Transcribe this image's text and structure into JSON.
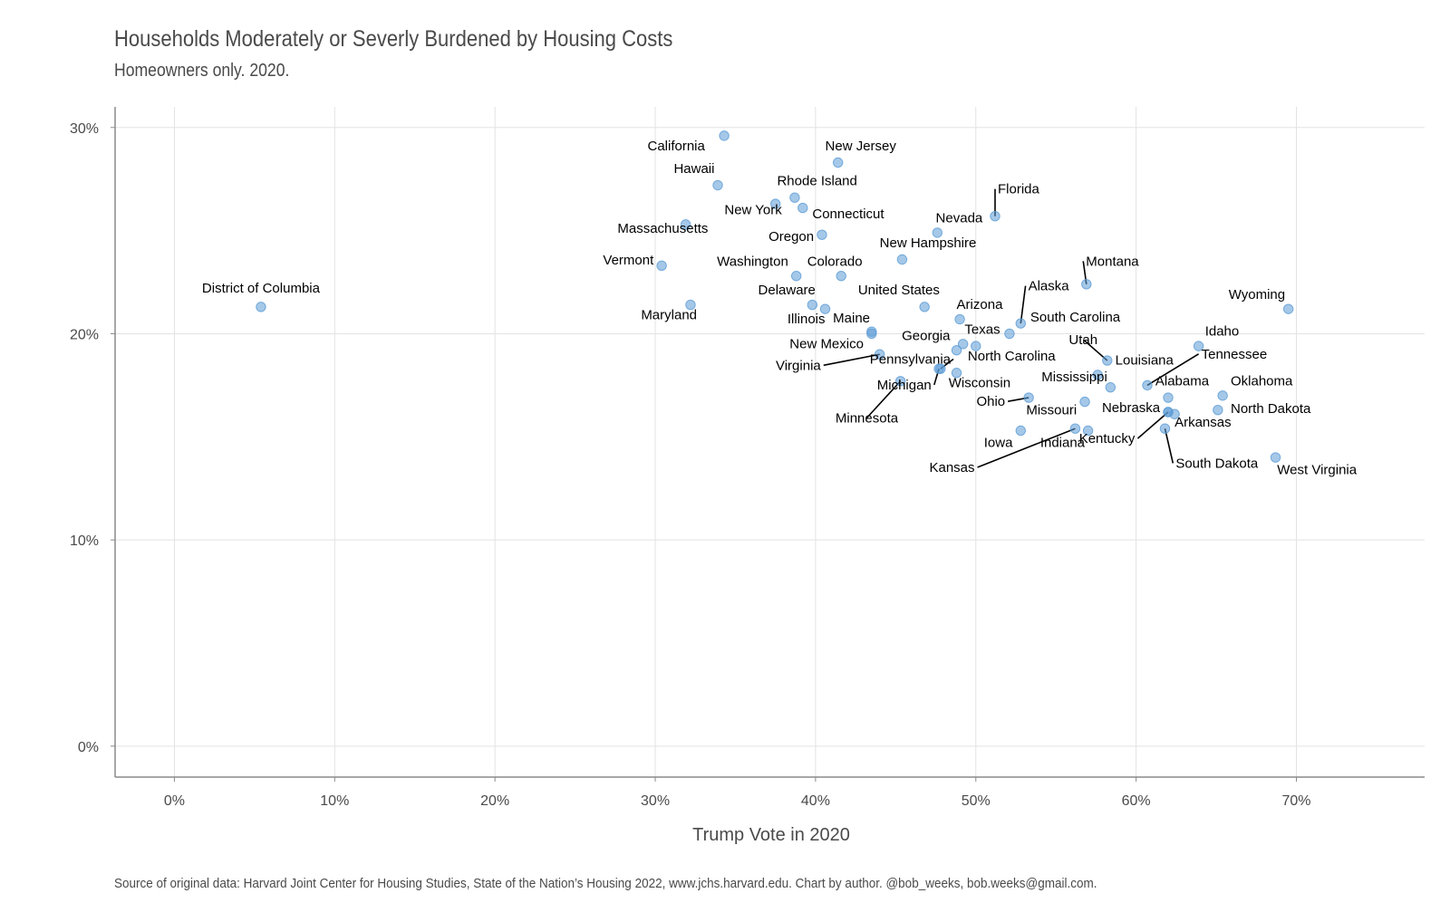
{
  "chart_data": {
    "type": "scatter",
    "title": "Households Moderately or Severly Burdened by Housing Costs",
    "subtitle": "Homeowners only. 2020.",
    "xlabel": "Trump Vote in 2020",
    "ylabel": "",
    "caption": "Source of original data: Harvard Joint Center for Housing Studies, State of the Nation’s Housing 2022, www.jchs.harvard.edu. Chart by author. @bob_weeks, bob.weeks@gmail.com.",
    "xlim": [
      -3.7,
      78
    ],
    "ylim": [
      -1.5,
      31
    ],
    "x_ticks": [
      0,
      10,
      20,
      30,
      40,
      50,
      60,
      70
    ],
    "x_tick_labels": [
      "0%",
      "10%",
      "20%",
      "30%",
      "40%",
      "50%",
      "60%",
      "70%"
    ],
    "y_ticks": [
      0,
      10,
      20,
      30
    ],
    "y_tick_labels": [
      "0%",
      "10%",
      "20%",
      "30%"
    ],
    "grid": true,
    "point_color": "#5b9bd5",
    "points": [
      {
        "label": "District of Columbia",
        "x": 5.4,
        "y": 21.3,
        "anchor": "middle",
        "dx": 0,
        "dy": 0.7,
        "leader": false
      },
      {
        "label": "California",
        "x": 34.3,
        "y": 29.6,
        "anchor": "end",
        "dx": -1.2,
        "dy": -0.7,
        "leader": false
      },
      {
        "label": "Hawaii",
        "x": 33.9,
        "y": 27.2,
        "anchor": "end",
        "dx": -0.2,
        "dy": 0.6,
        "leader": false
      },
      {
        "label": "Massachusetts",
        "x": 31.9,
        "y": 25.3,
        "anchor": "end",
        "dx": 1.4,
        "dy": -0.4,
        "leader": false
      },
      {
        "label": "Vermont",
        "x": 30.4,
        "y": 23.3,
        "anchor": "end",
        "dx": -0.5,
        "dy": 0.05,
        "leader": false
      },
      {
        "label": "Maryland",
        "x": 32.2,
        "y": 21.4,
        "anchor": "end",
        "dx": 0.4,
        "dy": -0.7,
        "leader": false
      },
      {
        "label": "New Jersey",
        "x": 41.4,
        "y": 28.3,
        "anchor": "start",
        "dx": -0.8,
        "dy": 0.6,
        "leader": false
      },
      {
        "label": "Rhode Island",
        "x": 38.7,
        "y": 26.6,
        "anchor": "start",
        "dx": -1.1,
        "dy": 0.6,
        "leader": false
      },
      {
        "label": "New York",
        "x": 37.5,
        "y": 26.3,
        "anchor": "end",
        "dx": 0.4,
        "dy": -0.5,
        "leader": false
      },
      {
        "label": "Connecticut",
        "x": 39.2,
        "y": 26.1,
        "anchor": "start",
        "dx": 0.6,
        "dy": -0.5,
        "leader": false
      },
      {
        "label": "Oregon",
        "x": 40.4,
        "y": 24.8,
        "anchor": "end",
        "dx": -0.5,
        "dy": -0.3,
        "leader": false
      },
      {
        "label": "Washington",
        "x": 38.8,
        "y": 22.8,
        "anchor": "end",
        "dx": -0.5,
        "dy": 0.5,
        "leader": false
      },
      {
        "label": "Colorado",
        "x": 41.6,
        "y": 22.8,
        "anchor": "middle",
        "dx": -0.4,
        "dy": 0.5,
        "leader": false
      },
      {
        "label": "Delaware",
        "x": 39.8,
        "y": 21.4,
        "anchor": "end",
        "dx": 0.2,
        "dy": 0.5,
        "leader": false
      },
      {
        "label": "Illinois",
        "x": 40.6,
        "y": 21.2,
        "anchor": "end",
        "dx": 0.0,
        "dy": -0.7,
        "leader": false
      },
      {
        "label": "Maine",
        "x": 43.5,
        "y": 20.1,
        "anchor": "end",
        "dx": -0.1,
        "dy": 0.45,
        "leader": false
      },
      {
        "label": "New Mexico",
        "x": 43.5,
        "y": 20.0,
        "anchor": "end",
        "dx": -0.5,
        "dy": -0.7,
        "leader": false
      },
      {
        "label": "Virginia",
        "x": 44.0,
        "y": 19.0,
        "anchor": "end",
        "dx": -3.5,
        "dy": -0.75,
        "leader": true
      },
      {
        "label": "Minnesota",
        "x": 45.3,
        "y": 17.7,
        "anchor": "middle",
        "dx": -2.1,
        "dy": -2.0,
        "leader": true
      },
      {
        "label": "New Hampshire",
        "x": 45.4,
        "y": 23.6,
        "anchor": "start",
        "dx": -1.4,
        "dy": 0.6,
        "leader": false
      },
      {
        "label": "United States",
        "x": 46.8,
        "y": 21.3,
        "anchor": "middle",
        "dx": -1.6,
        "dy": 0.6,
        "leader": false
      },
      {
        "label": "Nevada",
        "x": 47.6,
        "y": 24.9,
        "anchor": "start",
        "dx": -0.1,
        "dy": 0.5,
        "leader": false
      },
      {
        "label": "Florida",
        "x": 51.2,
        "y": 25.7,
        "anchor": "start",
        "dx": 0.0,
        "dy": 1.1,
        "leader": true
      },
      {
        "label": "Arizona",
        "x": 49.0,
        "y": 20.7,
        "anchor": "start",
        "dx": -0.2,
        "dy": 0.5,
        "leader": false
      },
      {
        "label": "Georgia",
        "x": 48.8,
        "y": 19.2,
        "anchor": "end",
        "dx": -0.4,
        "dy": 0.5,
        "leader": false
      },
      {
        "label": "Texas",
        "x": 49.2,
        "y": 19.5,
        "anchor": "start",
        "dx": 0.1,
        "dy": 0.5,
        "leader": false
      },
      {
        "label": "North Carolina",
        "x": 50.0,
        "y": 19.4,
        "anchor": "start",
        "dx": -0.5,
        "dy": -0.7,
        "leader": false
      },
      {
        "label": "Pennsylvania",
        "x": 47.8,
        "y": 18.3,
        "anchor": "end",
        "dx": 0.8,
        "dy": 0.25,
        "leader": true
      },
      {
        "label": "Wisconsin",
        "x": 48.8,
        "y": 18.1,
        "anchor": "start",
        "dx": -0.5,
        "dy": -0.7,
        "leader": false
      },
      {
        "label": "Michigan",
        "x": 47.7,
        "y": 18.3,
        "anchor": "end",
        "dx": -0.3,
        "dy": -1.0,
        "leader": true
      },
      {
        "label": "Alaska",
        "x": 52.8,
        "y": 20.5,
        "anchor": "start",
        "dx": 0.3,
        "dy": 1.6,
        "leader": true
      },
      {
        "label": "South Carolina",
        "x": 52.1,
        "y": 20.0,
        "anchor": "start",
        "dx": 1.3,
        "dy": 0.6,
        "leader": false
      },
      {
        "label": "Utah",
        "x": 58.2,
        "y": 18.7,
        "anchor": "middle",
        "dx": -1.5,
        "dy": 0.8,
        "leader": true
      },
      {
        "label": "Montana",
        "x": 56.9,
        "y": 22.4,
        "anchor": "start",
        "dx": -0.2,
        "dy": 0.9,
        "leader": true
      },
      {
        "label": "Louisiana",
        "x": 57.6,
        "y": 18.0,
        "anchor": "start",
        "dx": 1.1,
        "dy": 0.5,
        "leader": false
      },
      {
        "label": "Mississippi",
        "x": 58.4,
        "y": 17.4,
        "anchor": "end",
        "dx": -0.2,
        "dy": 0.3,
        "leader": false
      },
      {
        "label": "Ohio",
        "x": 53.3,
        "y": 16.9,
        "anchor": "end",
        "dx": -1.3,
        "dy": -0.4,
        "leader": true
      },
      {
        "label": "Missouri",
        "x": 56.8,
        "y": 16.7,
        "anchor": "end",
        "dx": -0.5,
        "dy": -0.6,
        "leader": false
      },
      {
        "label": "Iowa",
        "x": 52.8,
        "y": 15.3,
        "anchor": "end",
        "dx": -0.5,
        "dy": -0.8,
        "leader": false
      },
      {
        "label": "Indiana",
        "x": 57.0,
        "y": 15.3,
        "anchor": "end",
        "dx": -0.2,
        "dy": -0.8,
        "leader": false
      },
      {
        "label": "Kansas",
        "x": 56.2,
        "y": 15.4,
        "anchor": "end",
        "dx": -6.1,
        "dy": -2.1,
        "leader": true
      },
      {
        "label": "Alabama",
        "x": 62.0,
        "y": 16.9,
        "anchor": "start",
        "dx": -0.8,
        "dy": 0.6,
        "leader": false
      },
      {
        "label": "Nebraska",
        "x": 62.0,
        "y": 16.2,
        "anchor": "end",
        "dx": -0.5,
        "dy": 0.0,
        "leader": false
      },
      {
        "label": "Kentucky",
        "x": 62.0,
        "y": 16.2,
        "anchor": "end",
        "dx": -1.9,
        "dy": -1.5,
        "leader": true
      },
      {
        "label": "Arkansas",
        "x": 62.4,
        "y": 16.1,
        "anchor": "start",
        "dx": 0.0,
        "dy": -0.6,
        "leader": false
      },
      {
        "label": "South Dakota",
        "x": 61.8,
        "y": 15.4,
        "anchor": "start",
        "dx": 0.5,
        "dy": -1.9,
        "leader": true
      },
      {
        "label": "Tennessee",
        "x": 60.7,
        "y": 17.5,
        "anchor": "start",
        "dx": 3.2,
        "dy": 1.3,
        "leader": true
      },
      {
        "label": "Idaho",
        "x": 63.9,
        "y": 19.4,
        "anchor": "start",
        "dx": 0.4,
        "dy": 0.5,
        "leader": false
      },
      {
        "label": "Oklahoma",
        "x": 65.4,
        "y": 17.0,
        "anchor": "start",
        "dx": 0.5,
        "dy": 0.5,
        "leader": false
      },
      {
        "label": "North Dakota",
        "x": 65.1,
        "y": 16.3,
        "anchor": "start",
        "dx": 0.8,
        "dy": -0.15,
        "leader": false
      },
      {
        "label": "Wyoming",
        "x": 69.5,
        "y": 21.2,
        "anchor": "end",
        "dx": -0.2,
        "dy": 0.5,
        "leader": false
      },
      {
        "label": "West Virginia",
        "x": 68.7,
        "y": 14.0,
        "anchor": "start",
        "dx": 0.1,
        "dy": -0.8,
        "leader": false
      }
    ]
  }
}
